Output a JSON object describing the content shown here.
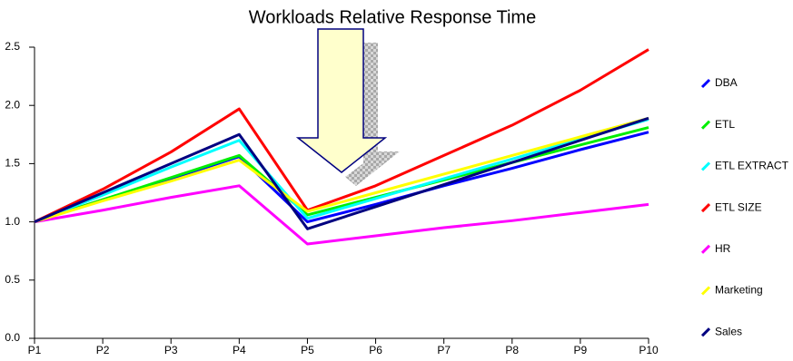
{
  "chart_data": {
    "type": "line",
    "title": "Workloads Relative Response Time",
    "categories": [
      "P1",
      "P2",
      "P3",
      "P4",
      "P5",
      "P6",
      "P7",
      "P8",
      "P9",
      "P10"
    ],
    "series": [
      {
        "name": "DBA",
        "color": "#0000ff",
        "values": [
          1.0,
          1.19,
          1.37,
          1.56,
          1.0,
          1.15,
          1.31,
          1.46,
          1.62,
          1.77
        ]
      },
      {
        "name": "ETL",
        "color": "#00ee00",
        "values": [
          1.0,
          1.19,
          1.38,
          1.57,
          1.06,
          1.21,
          1.36,
          1.51,
          1.66,
          1.81
        ]
      },
      {
        "name": "ETL EXTRACT",
        "color": "#00ffff",
        "values": [
          1.0,
          1.23,
          1.47,
          1.7,
          1.03,
          1.2,
          1.37,
          1.54,
          1.71,
          1.88
        ]
      },
      {
        "name": "ETL SIZE",
        "color": "#ff0000",
        "values": [
          1.0,
          1.28,
          1.6,
          1.97,
          1.1,
          1.31,
          1.57,
          1.83,
          2.13,
          2.48
        ]
      },
      {
        "name": "HR",
        "color": "#ff00ff",
        "values": [
          1.0,
          1.1,
          1.21,
          1.31,
          0.81,
          0.88,
          0.95,
          1.01,
          1.08,
          1.15
        ]
      },
      {
        "name": "Marketing",
        "color": "#ffff00",
        "values": [
          1.0,
          1.18,
          1.35,
          1.53,
          1.09,
          1.25,
          1.41,
          1.57,
          1.73,
          1.89
        ]
      },
      {
        "name": "Sales",
        "color": "#000080",
        "values": [
          1.0,
          1.25,
          1.5,
          1.75,
          0.94,
          1.13,
          1.32,
          1.51,
          1.7,
          1.89
        ]
      }
    ],
    "ylim": [
      0,
      2.5
    ],
    "yticks": [
      {
        "value": 0,
        "label": "0.0"
      },
      0.5,
      {
        "value": 1,
        "label": "1.0"
      },
      1.5,
      {
        "value": 2,
        "label": "2.0"
      },
      2.5
    ],
    "grid": false,
    "legend": "right"
  }
}
